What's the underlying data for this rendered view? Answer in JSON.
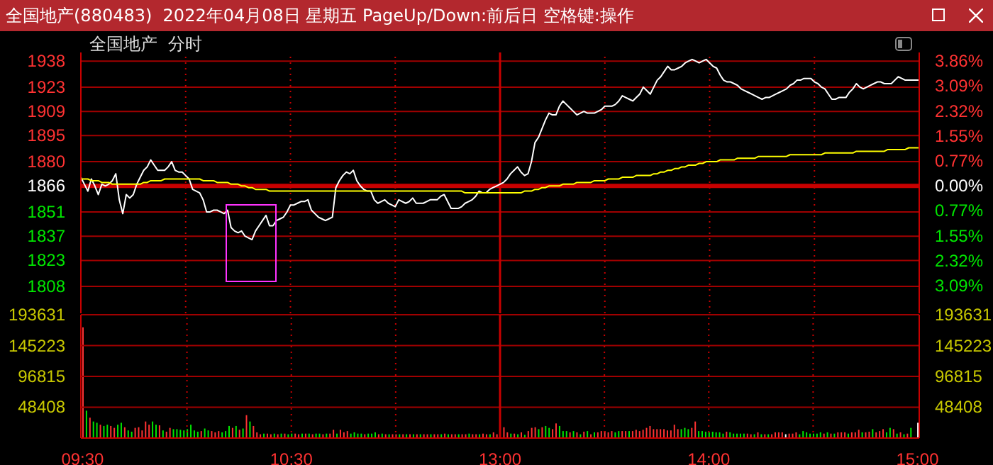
{
  "chart_data": [
    {
      "type": "line",
      "title": "全国地产(880483)  2022年04月08日 星期五 PageUp/Down:前后日 空格键:操作",
      "annotations": [
        "全国地产  分时"
      ],
      "categories": [
        "09:30",
        null,
        null,
        null,
        null,
        null,
        null,
        null,
        null,
        null,
        null,
        null,
        null,
        null,
        null,
        null,
        null,
        null,
        null,
        null,
        null,
        null,
        null,
        null,
        null,
        null,
        null,
        null,
        null,
        null,
        null,
        null,
        null,
        null,
        null,
        null,
        null,
        null,
        null,
        null,
        null,
        null,
        null,
        null,
        null,
        null,
        null,
        null,
        null,
        null,
        null,
        null,
        null,
        null,
        null,
        null,
        null,
        null,
        null,
        null,
        "10:30",
        null,
        null,
        null,
        null,
        null,
        null,
        null,
        null,
        null,
        null,
        null,
        null,
        null,
        null,
        null,
        null,
        null,
        null,
        null,
        null,
        null,
        null,
        null,
        null,
        null,
        null,
        null,
        null,
        null,
        null,
        null,
        null,
        null,
        null,
        null,
        null,
        null,
        null,
        null,
        null,
        null,
        null,
        null,
        null,
        null,
        null,
        null,
        null,
        null,
        null,
        null,
        null,
        null,
        null,
        null,
        null,
        null,
        null,
        null,
        "13:00",
        null,
        null,
        null,
        null,
        null,
        null,
        null,
        null,
        null,
        null,
        null,
        null,
        null,
        null,
        null,
        null,
        null,
        null,
        null,
        null,
        null,
        null,
        null,
        null,
        null,
        null,
        null,
        null,
        null,
        null,
        null,
        null,
        null,
        null,
        null,
        null,
        null,
        null,
        null,
        null,
        null,
        null,
        null,
        null,
        null,
        null,
        null,
        null,
        null,
        null,
        null,
        null,
        null,
        null,
        null,
        null,
        null,
        null,
        null,
        "14:00",
        null,
        null,
        null,
        null,
        null,
        null,
        null,
        null,
        null,
        null,
        null,
        null,
        null,
        null,
        null,
        null,
        null,
        null,
        null,
        null,
        null,
        null,
        null,
        null,
        null,
        null,
        null,
        null,
        null,
        null,
        null,
        null,
        null,
        null,
        null,
        null,
        null,
        null,
        null,
        null,
        null,
        null,
        null,
        null,
        null,
        null,
        null,
        null,
        null,
        null,
        null,
        null,
        null,
        null,
        null,
        null,
        null,
        null,
        null,
        "15:00"
      ],
      "series": [
        {
          "color": "#ffffff",
          "values": [
            1871,
            1867,
            1863,
            1870,
            1866,
            1861,
            1867,
            1866,
            1867,
            1869,
            1873,
            1858,
            1850,
            1861,
            1859,
            1861,
            1867,
            1871,
            1875,
            1877,
            1881,
            1878,
            1875,
            1875,
            1875,
            1877,
            1880,
            1875,
            1874,
            1874,
            1872,
            1870,
            1864,
            1863,
            1862,
            1858,
            1851,
            1851,
            1852,
            1852,
            1851,
            1850,
            1852,
            1842,
            1840,
            1839,
            1840,
            1837,
            1836,
            1835,
            1840,
            1843,
            1846,
            1849,
            1843,
            1843,
            1846,
            1847,
            1848,
            1851,
            1855,
            1855,
            1856,
            1857,
            1857,
            1858,
            1852,
            1850,
            1848,
            1847,
            1846,
            1847,
            1848,
            1865,
            1869,
            1872,
            1874,
            1873,
            1875,
            1869,
            1866,
            1864,
            1863,
            1863,
            1858,
            1856,
            1857,
            1858,
            1856,
            1855,
            1854,
            1858,
            1857,
            1856,
            1857,
            1859,
            1856,
            1856,
            1856,
            1857,
            1858,
            1858,
            1858,
            1860,
            1861,
            1857,
            1853,
            1853,
            1853,
            1854,
            1856,
            1857,
            1858,
            1860,
            1863,
            1862,
            1862,
            1864,
            1865,
            1866,
            1867,
            1868,
            1870,
            1873,
            1875,
            1877,
            1874,
            1872,
            1873,
            1880,
            1891,
            1894,
            1899,
            1904,
            1908,
            1907,
            1907,
            1912,
            1915,
            1913,
            1911,
            1909,
            1907,
            1908,
            1909,
            1908,
            1908,
            1908,
            1909,
            1910,
            1912,
            1912,
            1912,
            1913,
            1915,
            1918,
            1917,
            1916,
            1915,
            1917,
            1919,
            1923,
            1921,
            1919,
            1923,
            1927,
            1929,
            1932,
            1935,
            1933,
            1933,
            1934,
            1935,
            1937,
            1938,
            1939,
            1938,
            1937,
            1938,
            1939,
            1937,
            1935,
            1934,
            1930,
            1927,
            1926,
            1926,
            1925,
            1924,
            1922,
            1921,
            1920,
            1919,
            1918,
            1917,
            1916,
            1917,
            1917,
            1918,
            1919,
            1920,
            1921,
            1922,
            1924,
            1925,
            1927,
            1927,
            1928,
            1928,
            1928,
            1926,
            1925,
            1923,
            1922,
            1919,
            1916,
            1916,
            1917,
            1917,
            1917,
            1920,
            1922,
            1925,
            1923,
            1922,
            1923,
            1924,
            1925,
            1926,
            1926,
            1925,
            1925,
            1925,
            1927,
            1929,
            1928,
            1927,
            1927,
            1927,
            1927,
            1927
          ]
        },
        {
          "color": "#ffff00",
          "values": [
            1870,
            1870,
            1870,
            1869,
            1869,
            1869,
            1868,
            1868,
            1868,
            1867,
            1867,
            1867,
            1867,
            1867,
            1867,
            1867,
            1867,
            1867,
            1868,
            1868,
            1869,
            1869,
            1869,
            1869,
            1870,
            1870,
            1870,
            1870,
            1870,
            1870,
            1870,
            1870,
            1870,
            1870,
            1870,
            1869,
            1869,
            1869,
            1869,
            1868,
            1868,
            1868,
            1868,
            1867,
            1867,
            1867,
            1866,
            1866,
            1865,
            1865,
            1864,
            1864,
            1864,
            1864,
            1863,
            1863,
            1863,
            1863,
            1863,
            1863,
            1863,
            1863,
            1863,
            1863,
            1863,
            1863,
            1863,
            1863,
            1863,
            1863,
            1863,
            1863,
            1863,
            1863,
            1863,
            1863,
            1863,
            1863,
            1863,
            1863,
            1863,
            1863,
            1863,
            1863,
            1863,
            1863,
            1863,
            1863,
            1863,
            1863,
            1863,
            1863,
            1863,
            1863,
            1863,
            1863,
            1863,
            1863,
            1863,
            1863,
            1863,
            1863,
            1863,
            1863,
            1863,
            1863,
            1863,
            1863,
            1863,
            1863,
            1862,
            1862,
            1862,
            1862,
            1862,
            1862,
            1862,
            1862,
            1862,
            1862,
            1862,
            1862,
            1862,
            1862,
            1862,
            1862,
            1862,
            1863,
            1863,
            1863,
            1864,
            1864,
            1865,
            1865,
            1866,
            1866,
            1866,
            1866,
            1867,
            1867,
            1867,
            1867,
            1868,
            1868,
            1868,
            1868,
            1868,
            1869,
            1869,
            1869,
            1869,
            1870,
            1870,
            1870,
            1870,
            1871,
            1871,
            1871,
            1871,
            1872,
            1872,
            1872,
            1872,
            1872,
            1873,
            1873,
            1874,
            1874,
            1875,
            1875,
            1876,
            1876,
            1877,
            1877,
            1878,
            1878,
            1878,
            1879,
            1879,
            1880,
            1880,
            1880,
            1880,
            1881,
            1881,
            1881,
            1881,
            1881,
            1882,
            1882,
            1882,
            1882,
            1882,
            1882,
            1883,
            1883,
            1883,
            1883,
            1883,
            1883,
            1883,
            1883,
            1883,
            1884,
            1884,
            1884,
            1884,
            1884,
            1884,
            1884,
            1884,
            1884,
            1884,
            1885,
            1885,
            1885,
            1885,
            1885,
            1885,
            1885,
            1885,
            1885,
            1886,
            1886,
            1886,
            1886,
            1886,
            1886,
            1886,
            1886,
            1886,
            1887,
            1887,
            1887,
            1887,
            1887,
            1887,
            1888,
            1888,
            1888,
            1888
          ]
        }
      ],
      "ylim": [
        1792.5,
        1943
      ],
      "yticks": [
        1808,
        1823,
        1837,
        1851,
        1866,
        1880,
        1895,
        1909,
        1923,
        1938
      ],
      "y2lim": [
        -3.94,
        4.13
      ],
      "y2ticks": [
        {
          "value": -3.09,
          "label": "3.09%"
        },
        {
          "value": -2.32,
          "label": "2.32%"
        },
        {
          "value": -1.55,
          "label": "1.55%"
        },
        {
          "value": -0.77,
          "label": "0.77%"
        },
        {
          "value": 0,
          "label": "0.00%"
        },
        {
          "value": 0.77,
          "label": "0.77%"
        },
        {
          "value": 1.55,
          "label": "1.55%"
        },
        {
          "value": 2.32,
          "label": "2.32%"
        },
        {
          "value": 3.09,
          "label": "3.09%"
        },
        {
          "value": 3.86,
          "label": "3.86%"
        }
      ],
      "ref_lines": [
        {
          "axis": "y",
          "value": 1866,
          "color": "#c80000"
        },
        {
          "axis": "x",
          "value": "13:00",
          "color": "#c80000"
        }
      ],
      "grid": true,
      "tick_labels": "y",
      "marker": "none",
      "line_style": "solid"
    },
    {
      "type": "bar",
      "categories": [
        "09:30",
        null,
        null,
        null,
        null,
        null,
        null,
        null,
        null,
        null,
        null,
        null,
        null,
        null,
        null,
        null,
        null,
        null,
        null,
        null,
        null,
        null,
        null,
        null,
        null,
        null,
        null,
        null,
        null,
        null,
        null,
        null,
        null,
        null,
        null,
        null,
        null,
        null,
        null,
        null,
        null,
        null,
        null,
        null,
        null,
        null,
        null,
        null,
        null,
        null,
        null,
        null,
        null,
        null,
        null,
        null,
        null,
        null,
        null,
        null,
        "10:30",
        null,
        null,
        null,
        null,
        null,
        null,
        null,
        null,
        null,
        null,
        null,
        null,
        null,
        null,
        null,
        null,
        null,
        null,
        null,
        null,
        null,
        null,
        null,
        null,
        null,
        null,
        null,
        null,
        null,
        null,
        null,
        null,
        null,
        null,
        null,
        null,
        null,
        null,
        null,
        null,
        null,
        null,
        null,
        null,
        null,
        null,
        null,
        null,
        null,
        null,
        null,
        null,
        null,
        null,
        null,
        null,
        null,
        null,
        null,
        "13:00",
        null,
        null,
        null,
        null,
        null,
        null,
        null,
        null,
        null,
        null,
        null,
        null,
        null,
        null,
        null,
        null,
        null,
        null,
        null,
        null,
        null,
        null,
        null,
        null,
        null,
        null,
        null,
        null,
        null,
        null,
        null,
        null,
        null,
        null,
        null,
        null,
        null,
        null,
        null,
        null,
        null,
        null,
        null,
        null,
        null,
        null,
        null,
        null,
        null,
        null,
        null,
        null,
        null,
        null,
        null,
        null,
        null,
        null,
        null,
        "14:00",
        null,
        null,
        null,
        null,
        null,
        null,
        null,
        null,
        null,
        null,
        null,
        null,
        null,
        null,
        null,
        null,
        null,
        null,
        null,
        null,
        null,
        null,
        null,
        null,
        null,
        null,
        null,
        null,
        null,
        null,
        null,
        null,
        null,
        null,
        null,
        null,
        null,
        null,
        null,
        null,
        null,
        null,
        null,
        null,
        null,
        null,
        null,
        null,
        null,
        null,
        null,
        null,
        null,
        null,
        null,
        null,
        null,
        null,
        null,
        "15:00"
      ],
      "values": [
        174000,
        43000,
        32000,
        26000,
        24000,
        21000,
        19000,
        21000,
        19000,
        16000,
        21000,
        24000,
        17000,
        12000,
        10000,
        16000,
        17000,
        12000,
        26000,
        21000,
        26000,
        21000,
        20000,
        12000,
        10000,
        16000,
        14000,
        14000,
        13000,
        12000,
        14000,
        21000,
        12000,
        10000,
        11000,
        15000,
        12000,
        11000,
        9000,
        11000,
        9000,
        11000,
        19000,
        16000,
        19000,
        13000,
        15000,
        36000,
        26000,
        19000,
        9000,
        6000,
        7000,
        7000,
        6000,
        7000,
        6000,
        7000,
        7000,
        6000,
        7000,
        7000,
        6000,
        7000,
        7000,
        7000,
        6000,
        7000,
        7000,
        6000,
        7000,
        7000,
        13000,
        7000,
        13000,
        9000,
        11000,
        7000,
        9000,
        7000,
        7000,
        6000,
        7000,
        7000,
        9000,
        6000,
        7000,
        6000,
        6000,
        6000,
        6000,
        6000,
        6000,
        6000,
        6000,
        6000,
        6000,
        6000,
        6000,
        6000,
        6000,
        6000,
        6000,
        6000,
        7000,
        6000,
        6000,
        6000,
        6000,
        6000,
        6000,
        7000,
        6000,
        6000,
        6000,
        7000,
        6000,
        6000,
        9000,
        6000,
        null,
        17000,
        9000,
        7000,
        7000,
        6000,
        9000,
        5000,
        11000,
        16000,
        17000,
        14000,
        17000,
        19000,
        16000,
        14000,
        23000,
        19000,
        11000,
        11000,
        9000,
        11000,
        9000,
        6000,
        10000,
        11000,
        6000,
        9000,
        9000,
        11000,
        11000,
        9000,
        11000,
        9000,
        11000,
        11000,
        11000,
        11000,
        11000,
        13000,
        11000,
        13000,
        16000,
        19000,
        14000,
        14000,
        14000,
        14000,
        12000,
        12000,
        21000,
        14000,
        14000,
        16000,
        14000,
        16000,
        26000,
        11000,
        11000,
        10000,
        9000,
        10000,
        9000,
        9000,
        7000,
        10000,
        9000,
        7000,
        7000,
        7000,
        7000,
        7000,
        6000,
        6000,
        9000,
        6000,
        6000,
        6000,
        6000,
        9000,
        9000,
        9000,
        6000,
        7000,
        7000,
        9000,
        6000,
        11000,
        9000,
        7000,
        7000,
        7000,
        9000,
        7000,
        9000,
        7000,
        7000,
        9000,
        9000,
        9000,
        7000,
        9000,
        9000,
        13000,
        9000,
        9000,
        10000,
        14000,
        9000,
        11000,
        14000,
        9000,
        16000,
        14000,
        7000,
        9000,
        6000,
        7000,
        16000,
        1000,
        24000
      ],
      "colors": [
        "#ff3232",
        "#00e600",
        "#ff3232",
        "#00e600",
        "#00e600",
        "#ff3232",
        "#00e600",
        "#00e600",
        "#ff3232",
        "#ff3232",
        "#00e600",
        "#00e600",
        "#ff3232",
        "#00e600",
        "#00e600",
        "#ff3232",
        "#ff3232",
        "#ff3232",
        "#ff3232",
        "#ff3232",
        "#00e600",
        "#00e600",
        "#ff3232",
        "#00e600",
        "#ff3232",
        "#ff3232",
        "#00e600",
        "#00e600",
        "#00e600",
        "#00e600",
        "#00e600",
        "#00e600",
        "#00e600",
        "#00e600",
        "#ff3232",
        "#00e600",
        "#00e600",
        "#ff3232",
        "#ff3232",
        "#ff3232",
        "#00e600",
        "#00e600",
        "#00e600",
        "#ff3232",
        "#00e600",
        "#ff3232",
        "#00e600",
        "#ff3232",
        "#00e600",
        "#ff3232",
        "#ff3232",
        "#ff3232",
        "#00e600",
        "#ff3232",
        "#ff3232",
        "#00e600",
        "#ff3232",
        "#00e600",
        "#ff3232",
        "#00e600",
        "#00e600",
        "#ff3232",
        "#ff3232",
        "#00e600",
        "#ff3232",
        "#00e600",
        "#ff3232",
        "#00e600",
        "#00e600",
        "#ff3232",
        "#00e600",
        "#ff3232",
        "#ff3232",
        "#00e600",
        "#ff3232",
        "#ff3232",
        "#ff3232",
        "#00e600",
        "#00e600",
        "#00e600",
        "#00e600",
        "#ff3232",
        "#00e600",
        "#00e600",
        "#00e600",
        "#ff3232",
        "#00e600",
        "#ff3232",
        "#00e600",
        "#ff3232",
        "#ff3232",
        "#00e600",
        "#ff3232",
        "#00e600",
        "#ff3232",
        "#00e600",
        "#ff3232",
        "#00e600",
        "#ff3232",
        "#ff3232",
        "#00e600",
        "#ff3232",
        "#ff3232",
        "#00e600",
        "#ff3232",
        "#00e600",
        "#ff3232",
        "#ff3232",
        "#00e600",
        "#ff3232",
        "#ff3232",
        "#00e600",
        "#ff3232",
        "#ff3232",
        "#00e600",
        "#ff3232",
        "#ff3232",
        "#00e600",
        "#ff3232",
        "#ff3232",
        "#ff3232",
        "#ff3232",
        "#ff3232",
        "#00e600",
        "#ff3232",
        "#00e600",
        "#ff3232",
        "#00e600",
        "#ff3232",
        "#ff3232",
        "#ff3232",
        "#00e600",
        "#ff3232",
        "#00e600",
        "#00e600",
        "#ff3232",
        "#ff3232",
        "#00e600",
        "#00e600",
        "#00e600",
        "#ff3232",
        "#00e600",
        "#ff3232",
        "#00e600",
        "#ff3232",
        "#00e600",
        "#ff3232",
        "#00e600",
        "#ff3232",
        "#ff3232",
        "#ff3232",
        "#ff3232",
        "#ff3232",
        "#00e600",
        "#00e600",
        "#ff3232",
        "#ff3232",
        "#00e600",
        "#ff3232",
        "#ff3232",
        "#ff3232",
        "#ff3232",
        "#ff3232",
        "#ff3232",
        "#ff3232",
        "#ff3232",
        "#ff3232",
        "#ff3232",
        "#ff3232",
        "#ff3232",
        "#ff3232",
        "#ff3232",
        "#00e600",
        "#00e600",
        "#00e600",
        "#ff3232",
        "#ff3232",
        "#00e600",
        "#00e600",
        "#00e600",
        "#00e600",
        "#00e600",
        "#00e600",
        "#00e600",
        "#00e600",
        "#ff3232",
        "#00e600",
        "#00e600",
        "#00e600",
        "#00e600",
        "#00e600",
        "#ff3232",
        "#ff3232",
        "#00e600",
        "#ff3232",
        "#00e600",
        "#ff3232",
        "#00e600",
        "#ff3232",
        "#ff3232",
        "#ff3232",
        "#ff3232",
        "#ffffff",
        "#ff3232",
        "#ff3232",
        "#ff3232",
        "#00e600",
        "#00e600",
        "#00e600",
        "#00e600",
        "#00e600",
        "#00e600",
        "#00e600",
        "#ff3232",
        "#00e600",
        "#ff3232",
        "#00e600",
        "#ff3232",
        "#ff3232",
        "#ff3232",
        "#00e600",
        "#ff3232",
        "#ff3232",
        "#ff3232",
        "#00e600",
        "#ff3232",
        "#ff3232",
        "#00e600",
        "#ff3232",
        "#ff3232",
        "#ff3232",
        "#00e600",
        "#00e600",
        "#ff3232",
        "#00e600",
        "#ff3232",
        "#00e600",
        "#ff3232",
        "#00e600",
        "#ff3232",
        "#ffffff"
      ],
      "ylim": [
        0,
        193631
      ],
      "yticks": [
        48408,
        96815,
        145223,
        193631
      ],
      "y2lim": [
        0,
        193631
      ],
      "y2ticks": [
        48408,
        96815,
        145223,
        193631
      ],
      "ref_lines": [
        {
          "axis": "x",
          "value": "13:00",
          "color": "#c80000"
        }
      ],
      "grid": true
    }
  ]
}
